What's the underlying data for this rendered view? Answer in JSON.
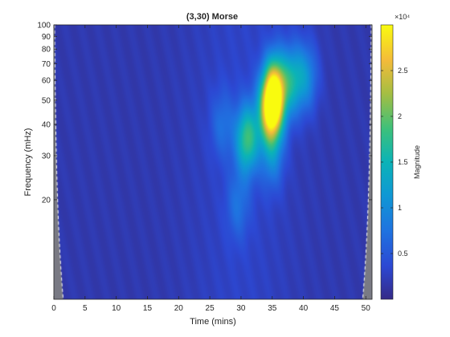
{
  "chart_data": {
    "type": "heatmap",
    "title": "(3,30) Morse",
    "xlabel": "Time (mins)",
    "ylabel": "Frequency (mHz)",
    "x_ticks": [
      "0",
      "5",
      "10",
      "15",
      "20",
      "25",
      "30",
      "35",
      "40",
      "45",
      "50"
    ],
    "y_ticks": [
      "20",
      "30",
      "40",
      "50",
      "60",
      "70",
      "80",
      "90",
      "100"
    ],
    "xlim": [
      0,
      51
    ],
    "ylim": [
      8,
      100
    ],
    "y_scale": "log",
    "colorbar": {
      "label": "Magnitude",
      "exponent_label": "×10⁴",
      "ticks": [
        "0.5",
        "1",
        "1.5",
        "2",
        "2.5"
      ],
      "range": [
        0,
        30000
      ],
      "colormap": "parula"
    },
    "hotspots": [
      {
        "time": 34.8,
        "frequency": 46,
        "magnitude": 28000
      },
      {
        "time": 35.5,
        "frequency": 56,
        "magnitude": 20000
      },
      {
        "time": 31.0,
        "frequency": 35,
        "magnitude": 17000
      },
      {
        "time": 38.2,
        "frequency": 60,
        "magnitude": 12000
      },
      {
        "time": 40.5,
        "frequency": 62,
        "magnitude": 9000
      },
      {
        "time": 35.0,
        "frequency": 30,
        "magnitude": 8000
      },
      {
        "time": 29.5,
        "frequency": 19,
        "magnitude": 6000
      },
      {
        "time": 27.0,
        "frequency": 40,
        "magnitude": 6000
      }
    ],
    "cone_of_influence": "shaded at both time edges"
  }
}
